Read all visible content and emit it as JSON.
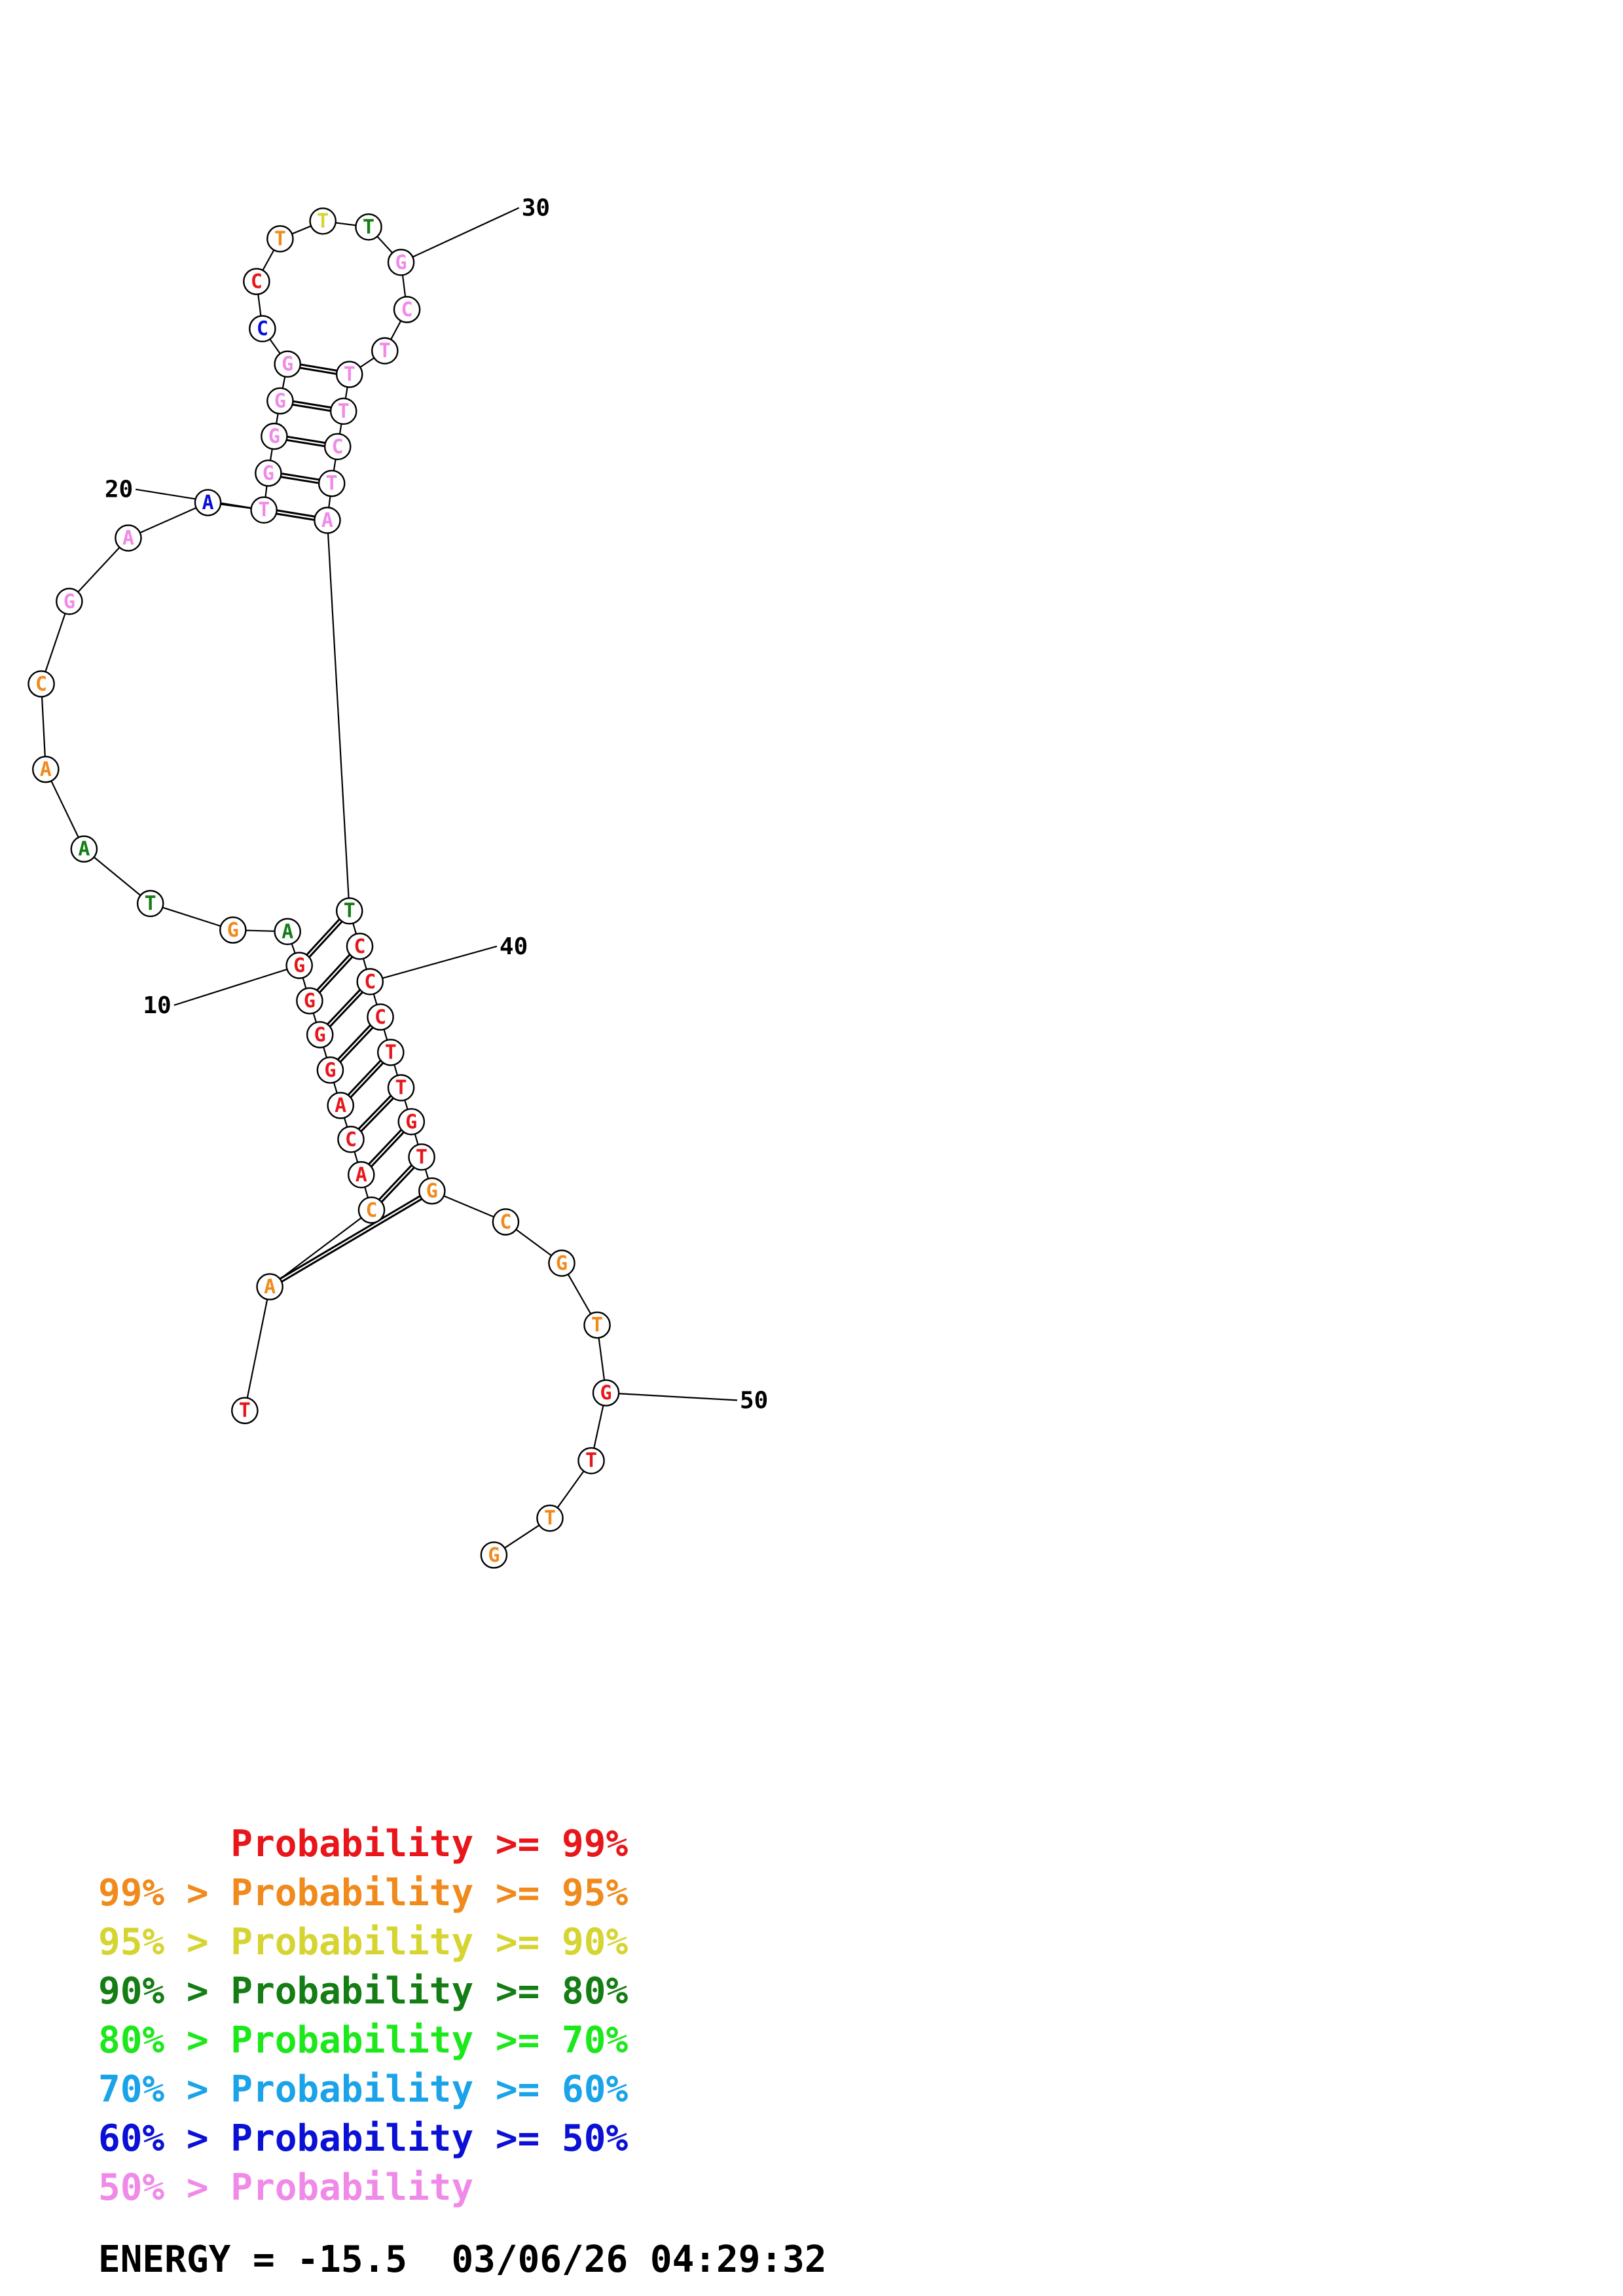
{
  "colors": {
    "p99": "#e8161b",
    "p95": "#f08a1c",
    "p90": "#d6d430",
    "p80": "#147d14",
    "p70": "#1ce81c",
    "p60": "#1aa3e8",
    "p50": "#0a10d6",
    "plow": "#f08ae8"
  },
  "sequence": [
    {
      "n": 1,
      "base": "T",
      "cls": "p99"
    },
    {
      "n": 2,
      "base": "A",
      "cls": "p95"
    },
    {
      "n": 3,
      "base": "C",
      "cls": "p95"
    },
    {
      "n": 4,
      "base": "A",
      "cls": "p99"
    },
    {
      "n": 5,
      "base": "C",
      "cls": "p99"
    },
    {
      "n": 6,
      "base": "A",
      "cls": "p99"
    },
    {
      "n": 7,
      "base": "G",
      "cls": "p99"
    },
    {
      "n": 8,
      "base": "G",
      "cls": "p99"
    },
    {
      "n": 9,
      "base": "G",
      "cls": "p99"
    },
    {
      "n": 10,
      "base": "G",
      "cls": "p99"
    },
    {
      "n": 11,
      "base": "A",
      "cls": "p80"
    },
    {
      "n": 12,
      "base": "G",
      "cls": "p95"
    },
    {
      "n": 13,
      "base": "T",
      "cls": "p80"
    },
    {
      "n": 14,
      "base": "A",
      "cls": "p80"
    },
    {
      "n": 15,
      "base": "A",
      "cls": "p95"
    },
    {
      "n": 16,
      "base": "C",
      "cls": "p95"
    },
    {
      "n": 17,
      "base": "G",
      "cls": "plow"
    },
    {
      "n": 18,
      "base": "A",
      "cls": "plow"
    },
    {
      "n": 19,
      "base": "A",
      "cls": "p50"
    },
    {
      "n": 20,
      "base": "T",
      "cls": "plow"
    },
    {
      "n": 21,
      "base": "G",
      "cls": "plow"
    },
    {
      "n": 22,
      "base": "G",
      "cls": "plow"
    },
    {
      "n": 23,
      "base": "G",
      "cls": "plow"
    },
    {
      "n": 24,
      "base": "G",
      "cls": "plow"
    },
    {
      "n": 25,
      "base": "C",
      "cls": "p50"
    },
    {
      "n": 26,
      "base": "C",
      "cls": "p99"
    },
    {
      "n": 27,
      "base": "T",
      "cls": "p95"
    },
    {
      "n": 28,
      "base": "T",
      "cls": "p90"
    },
    {
      "n": 29,
      "base": "T",
      "cls": "p80"
    },
    {
      "n": 30,
      "base": "G",
      "cls": "plow"
    },
    {
      "n": 31,
      "base": "C",
      "cls": "plow"
    },
    {
      "n": 32,
      "base": "T",
      "cls": "plow"
    },
    {
      "n": 33,
      "base": "T",
      "cls": "plow"
    },
    {
      "n": 34,
      "base": "T",
      "cls": "plow"
    },
    {
      "n": 35,
      "base": "C",
      "cls": "plow"
    },
    {
      "n": 36,
      "base": "T",
      "cls": "plow"
    },
    {
      "n": 37,
      "base": "A",
      "cls": "plow"
    },
    {
      "n": 38,
      "base": "T",
      "cls": "p80"
    },
    {
      "n": 39,
      "base": "C",
      "cls": "p99"
    },
    {
      "n": 40,
      "base": "C",
      "cls": "p99"
    },
    {
      "n": 41,
      "base": "C",
      "cls": "p99"
    },
    {
      "n": 42,
      "base": "T",
      "cls": "p99"
    },
    {
      "n": 43,
      "base": "T",
      "cls": "p99"
    },
    {
      "n": 44,
      "base": "G",
      "cls": "p99"
    },
    {
      "n": 45,
      "base": "T",
      "cls": "p99"
    },
    {
      "n": 46,
      "base": "G",
      "cls": "p95"
    },
    {
      "n": 47,
      "base": "C",
      "cls": "p95"
    },
    {
      "n": 48,
      "base": "G",
      "cls": "p95"
    },
    {
      "n": 49,
      "base": "T",
      "cls": "p95"
    },
    {
      "n": 50,
      "base": "G",
      "cls": "p99"
    },
    {
      "n": 51,
      "base": "T",
      "cls": "p99"
    },
    {
      "n": 52,
      "base": "T",
      "cls": "p95"
    },
    {
      "n": 53,
      "base": "G",
      "cls": "p95"
    }
  ],
  "pairs": [
    [
      2,
      46
    ],
    [
      3,
      45
    ],
    [
      4,
      44
    ],
    [
      5,
      43
    ],
    [
      6,
      42
    ],
    [
      7,
      41
    ],
    [
      8,
      40
    ],
    [
      9,
      39
    ],
    [
      10,
      38
    ],
    [
      20,
      37
    ],
    [
      21,
      36
    ],
    [
      22,
      35
    ],
    [
      23,
      34
    ],
    [
      24,
      33
    ]
  ],
  "position_labels": [
    {
      "n": 10,
      "text": "10"
    },
    {
      "n": 20,
      "text": "20"
    },
    {
      "n": 30,
      "text": "30"
    },
    {
      "n": 40,
      "text": "40"
    },
    {
      "n": 50,
      "text": "50"
    }
  ],
  "legend": [
    {
      "prefix": "    ",
      "label": "Probability >= 99%",
      "cls": "p99"
    },
    {
      "prefix": "99% > ",
      "label": "Probability >= 95%",
      "cls": "p95"
    },
    {
      "prefix": "95% > ",
      "label": "Probability >= 90%",
      "cls": "p90"
    },
    {
      "prefix": "90% > ",
      "label": "Probability >= 80%",
      "cls": "p80"
    },
    {
      "prefix": "80% > ",
      "label": "Probability >= 70%",
      "cls": "p70"
    },
    {
      "prefix": "70% > ",
      "label": "Probability >= 60%",
      "cls": "p60"
    },
    {
      "prefix": "60% > ",
      "label": "Probability >= 50%",
      "cls": "p50"
    },
    {
      "prefix": "50% > ",
      "label": "Probability",
      "cls": "plow"
    }
  ],
  "energy_line": "ENERGY = -15.5  03/06/26 04:29:32"
}
